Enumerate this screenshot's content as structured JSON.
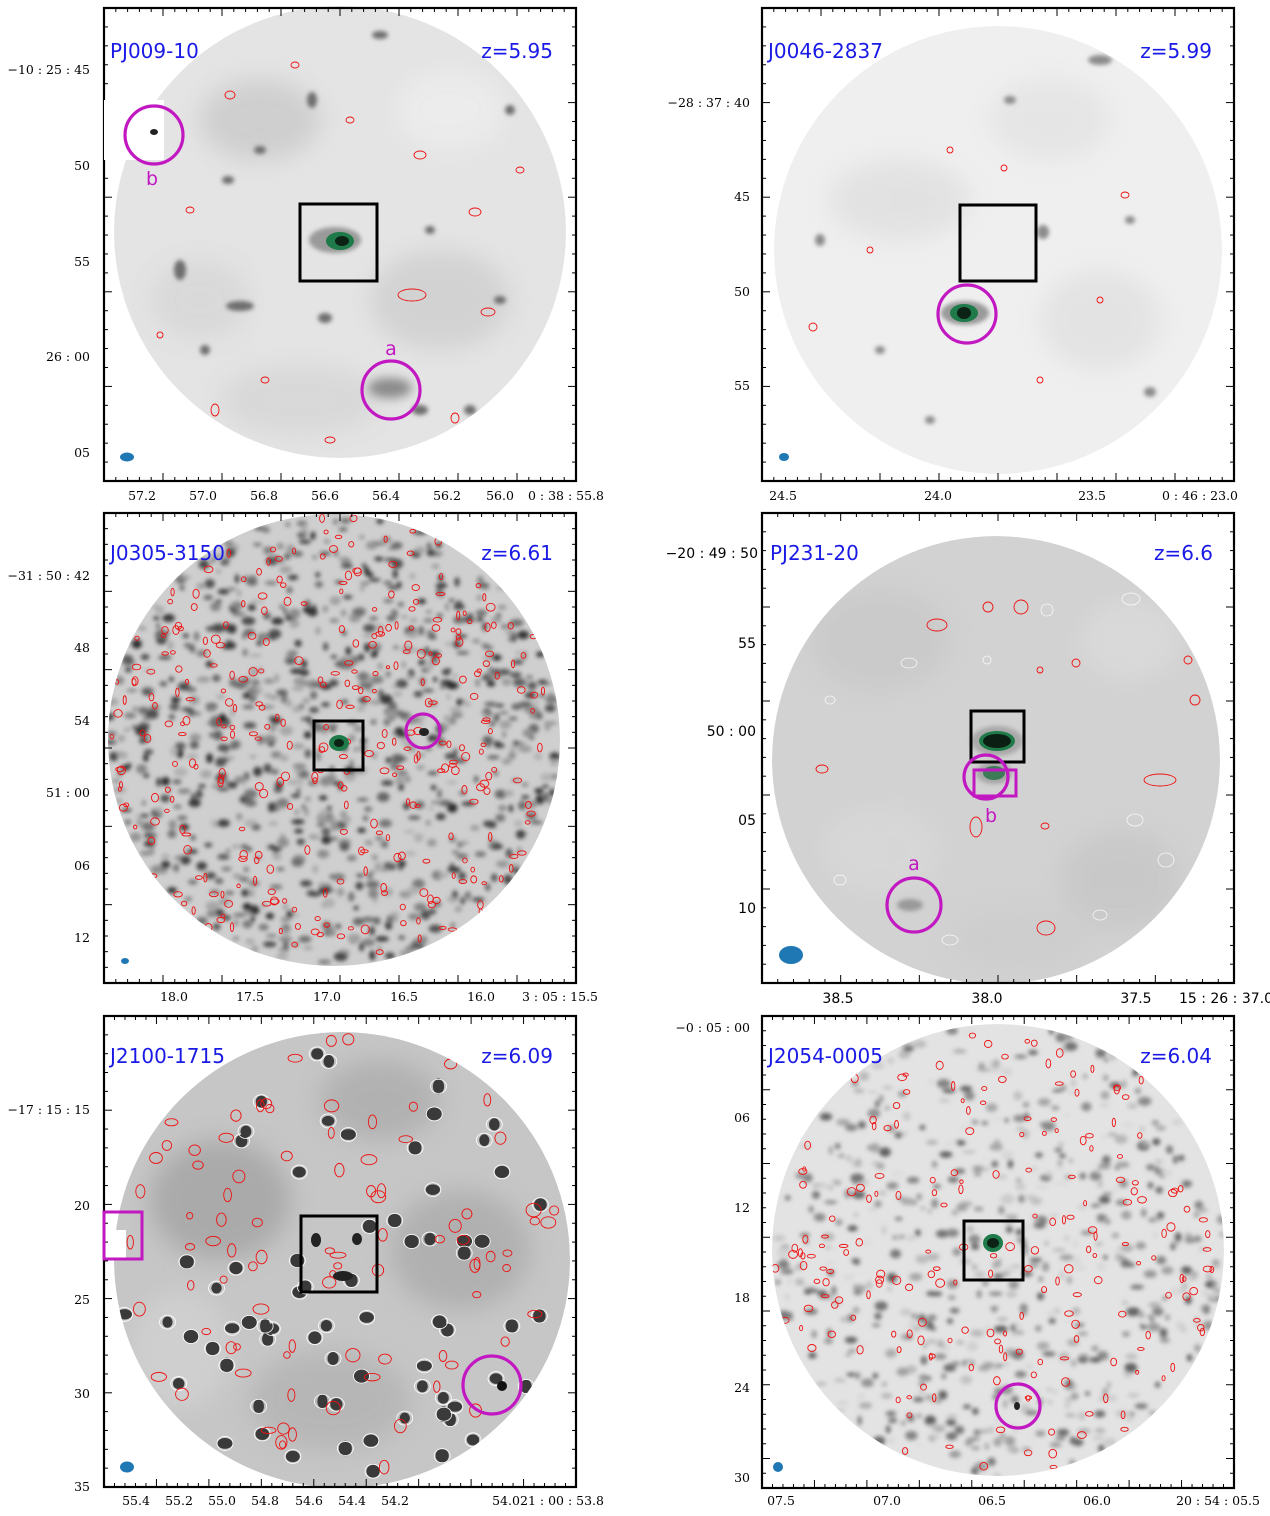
{
  "panels": [
    {
      "id": "pj009",
      "object": "PJ009-10",
      "redshift": "z=5.95",
      "companions": [
        {
          "label": "a"
        },
        {
          "label": "b"
        }
      ],
      "y_ticks": [
        "−10 : 25 : 45",
        "50",
        "55",
        "26 : 00",
        "05"
      ],
      "x_ticks": [
        "57.2",
        "57.0",
        "56.8",
        "56.6",
        "56.4",
        "56.2",
        "56.0",
        "0 : 38 : 55.8"
      ]
    },
    {
      "id": "j0046",
      "object": "J0046-2837",
      "redshift": "z=5.99",
      "companions": [],
      "y_ticks": [
        "−28 : 37 : 40",
        "45",
        "50",
        "55"
      ],
      "x_ticks": [
        "24.5",
        "24.0",
        "23.5",
        "0 : 46 : 23.0"
      ]
    },
    {
      "id": "j0305",
      "object": "J0305-3150",
      "redshift": "z=6.61",
      "companions": [],
      "y_ticks": [
        "−31 : 50 : 42",
        "48",
        "54",
        "51 : 00",
        "06",
        "12"
      ],
      "x_ticks": [
        "18.0",
        "17.5",
        "17.0",
        "16.5",
        "16.0",
        "3 : 05 : 15.5"
      ]
    },
    {
      "id": "pj231",
      "object": "PJ231-20",
      "redshift": "z=6.6",
      "companions": [
        {
          "label": "a"
        },
        {
          "label": "b"
        }
      ],
      "y_ticks": [
        "−20 : 49 : 50",
        "55",
        "50 : 00",
        "05",
        "10"
      ],
      "x_ticks": [
        "38.5",
        "38.0",
        "37.5",
        "15 : 26 : 37.0"
      ]
    },
    {
      "id": "j2100",
      "object": "J2100-1715",
      "redshift": "z=6.09",
      "companions": [],
      "y_ticks": [
        "−17 : 15 : 15",
        "20",
        "25",
        "30",
        "35"
      ],
      "x_ticks": [
        "55.4",
        "55.2",
        "55.0",
        "54.8",
        "54.6",
        "54.4",
        "54.2",
        "54.0",
        "21 : 00 : 53.8"
      ]
    },
    {
      "id": "j2054",
      "object": "J2054-0005",
      "redshift": "z=6.04",
      "companions": [],
      "y_ticks": [
        "−0 : 05 : 00",
        "06",
        "12",
        "18",
        "24",
        "30"
      ],
      "x_ticks": [
        "07.5",
        "07.0",
        "06.5",
        "06.0",
        "20 : 54 : 05.5"
      ]
    }
  ],
  "colors": {
    "label_blue": "#1a1ae6",
    "marker_magenta": "#c218c2",
    "beam_blue": "#1f77b4",
    "contour_red": "#ee1111",
    "source_green": "#1f7a4a"
  }
}
